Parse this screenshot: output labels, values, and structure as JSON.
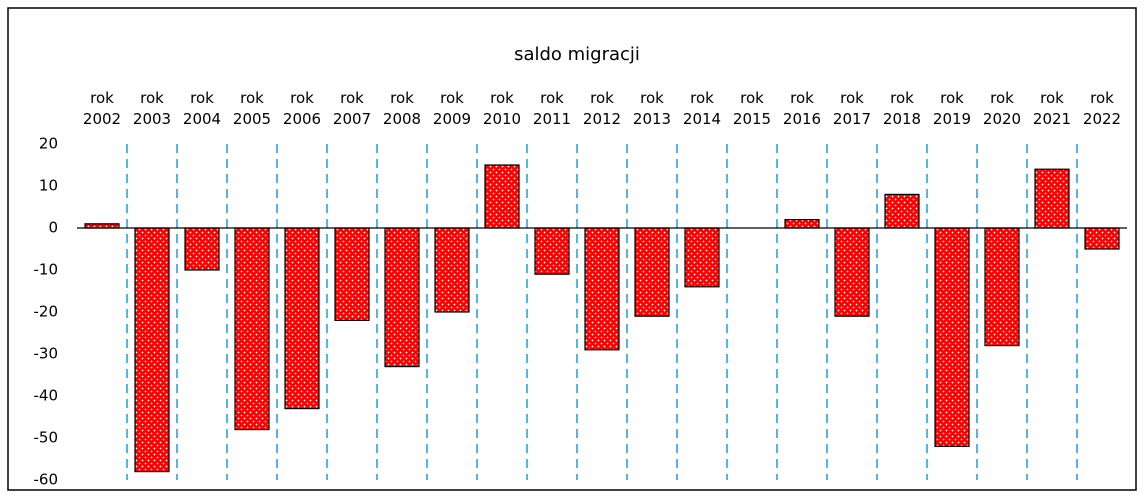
{
  "chart_data": {
    "type": "bar",
    "title": "saldo migracji",
    "categories": [
      "rok 2002",
      "rok 2003",
      "rok 2004",
      "rok 2005",
      "rok 2006",
      "rok 2007",
      "rok 2008",
      "rok 2009",
      "rok 2010",
      "rok 2011",
      "rok 2012",
      "rok 2013",
      "rok 2014",
      "rok 2015",
      "rok 2016",
      "rok 2017",
      "rok 2018",
      "rok 2019",
      "rok 2020",
      "rok 2021",
      "rok 2022"
    ],
    "values": [
      1,
      -58,
      -10,
      -48,
      -43,
      -22,
      -33,
      -20,
      15,
      -11,
      -29,
      -21,
      -14,
      0,
      2,
      -21,
      8,
      -52,
      -28,
      14,
      -5
    ],
    "color": "#ff0000",
    "ylim": [
      -60,
      20
    ],
    "yticks": [
      -60,
      -50,
      -40,
      -30,
      -20,
      -10,
      0,
      10,
      20
    ]
  }
}
